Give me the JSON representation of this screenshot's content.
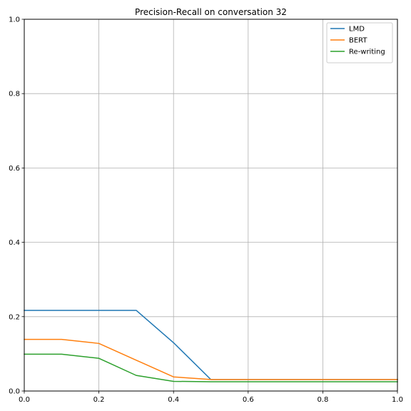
{
  "chart_data": {
    "type": "line",
    "title": "Precision-Recall on conversation 32",
    "xlabel": "",
    "ylabel": "",
    "xlim": [
      0.0,
      1.0
    ],
    "ylim": [
      0.0,
      1.0
    ],
    "grid": true,
    "legend_position": "top-right",
    "x_ticks": [
      "0.0",
      "0.2",
      "0.4",
      "0.6",
      "0.8",
      "1.0"
    ],
    "y_ticks": [
      "0.0",
      "0.2",
      "0.4",
      "0.6",
      "0.8",
      "1.0"
    ],
    "series": [
      {
        "name": "LMD",
        "color": "#1f77b4",
        "x": [
          0.0,
          0.1,
          0.2,
          0.3,
          0.4,
          0.5,
          0.6,
          0.7,
          0.8,
          0.9,
          1.0
        ],
        "y": [
          0.217,
          0.217,
          0.217,
          0.217,
          0.13,
          0.031,
          0.031,
          0.031,
          0.031,
          0.031,
          0.031
        ]
      },
      {
        "name": "BERT",
        "color": "#ff7f0e",
        "x": [
          0.0,
          0.1,
          0.2,
          0.3,
          0.4,
          0.5,
          0.6,
          0.7,
          0.8,
          0.9,
          1.0
        ],
        "y": [
          0.139,
          0.139,
          0.128,
          0.083,
          0.038,
          0.031,
          0.031,
          0.031,
          0.031,
          0.031,
          0.031
        ]
      },
      {
        "name": "Re-writing",
        "color": "#2ca02c",
        "x": [
          0.0,
          0.1,
          0.2,
          0.3,
          0.4,
          0.5,
          0.6,
          0.7,
          0.8,
          0.9,
          1.0
        ],
        "y": [
          0.099,
          0.099,
          0.088,
          0.042,
          0.026,
          0.025,
          0.025,
          0.025,
          0.025,
          0.025,
          0.025
        ]
      }
    ]
  }
}
